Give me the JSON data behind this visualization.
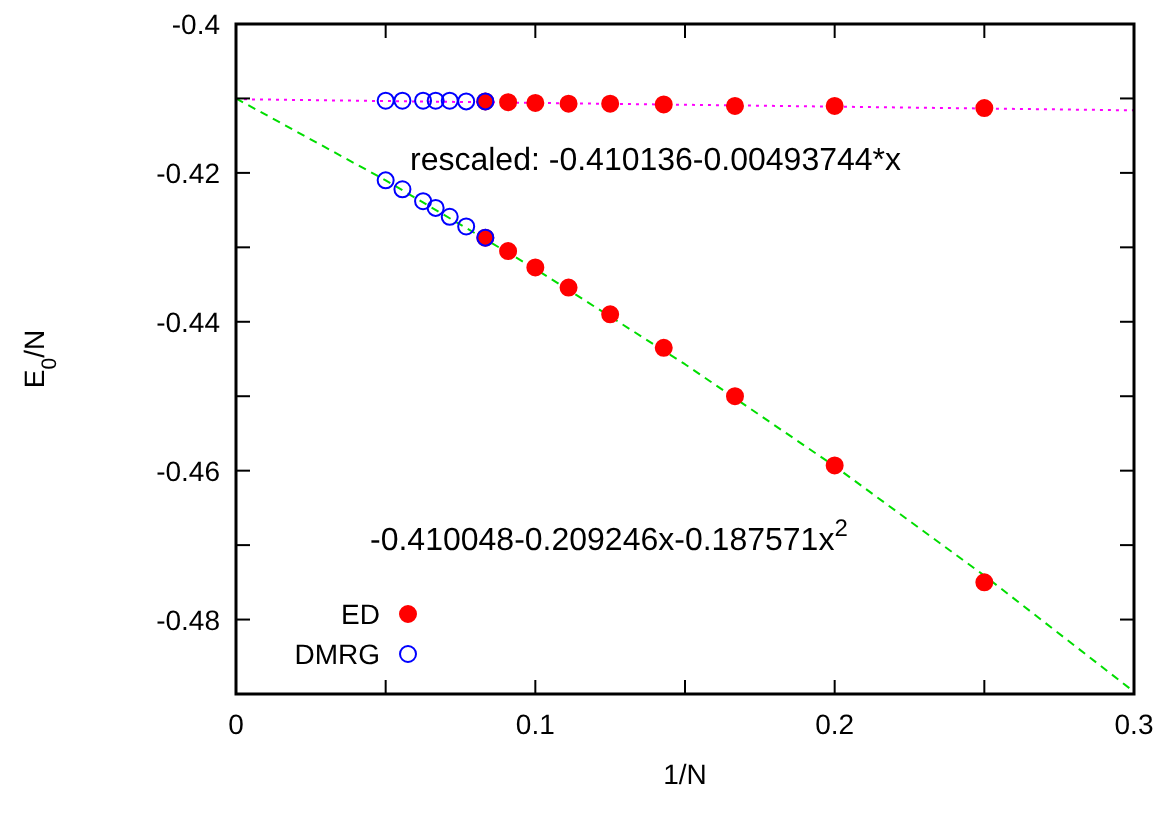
{
  "chart_data": {
    "type": "scatter",
    "xlabel": "1/N",
    "ylabel": "E$_{0}$/N",
    "xlim": [
      0,
      0.3
    ],
    "xticks": [
      0,
      {
        "value": 0.05,
        "label": null
      },
      0.1,
      {
        "value": 0.15,
        "label": null
      },
      0.2,
      {
        "value": 0.25,
        "label": null
      },
      0.3
    ],
    "ylim": [
      -0.49,
      -0.4
    ],
    "yticks": [
      -0.4,
      {
        "value": -0.41,
        "label": null
      },
      -0.42,
      {
        "value": -0.43,
        "label": null
      },
      -0.44,
      {
        "value": -0.45,
        "label": null
      },
      -0.46,
      {
        "value": -0.47,
        "label": null
      },
      -0.48,
      {
        "value": -0.49,
        "label": null
      }
    ],
    "grid": false,
    "legend": "bottom left",
    "marker": "circle",
    "annotations": [
      "rescaled: -0.410136-0.00493744*x",
      "-0.410048-0.209246x-0.187571x$^{2}$"
    ],
    "series": [
      {
        "type": "line",
        "color": "#ff00ff",
        "line_style": "dotted",
        "marker": "none",
        "x": [
          0,
          0.3
        ],
        "values": [
          -0.4101,
          -0.4116
        ]
      },
      {
        "type": "line",
        "color": "#00dd00",
        "line_style": "dashed",
        "marker": "none",
        "x": [
          0,
          0.05,
          0.1,
          0.15,
          0.2,
          0.25,
          0.3
        ],
        "values": [
          -0.41,
          -0.421,
          -0.4329,
          -0.4457,
          -0.4594,
          -0.4741,
          -0.4897
        ]
      },
      {
        "name": "ED",
        "color": "#ff0000",
        "x": [
          0.25,
          0.2,
          0.1667,
          0.1429,
          0.125,
          0.1111,
          0.1,
          0.0909,
          0.0833,
          0.25,
          0.2,
          0.1667,
          0.1429,
          0.125,
          0.1111,
          0.1,
          0.0909,
          0.0833
        ],
        "values": [
          -0.4113,
          -0.411,
          -0.411,
          -0.4108,
          -0.4107,
          -0.4107,
          -0.4106,
          -0.4105,
          -0.4104,
          -0.475,
          -0.4593,
          -0.45,
          -0.4435,
          -0.439,
          -0.4354,
          -0.4327,
          -0.4305,
          -0.4287
        ]
      },
      {
        "name": "DMRG",
        "color": "#0000ff",
        "x": [
          0.05,
          0.0556,
          0.0625,
          0.0667,
          0.0714,
          0.0769,
          0.0833,
          0.05,
          0.0556,
          0.0625,
          0.0667,
          0.0714,
          0.0769,
          0.0833
        ],
        "values": [
          -0.4103,
          -0.4103,
          -0.4103,
          -0.4103,
          -0.4103,
          -0.4104,
          -0.4104,
          -0.421,
          -0.4222,
          -0.4238,
          -0.4247,
          -0.4259,
          -0.4272,
          -0.4287
        ]
      }
    ]
  }
}
